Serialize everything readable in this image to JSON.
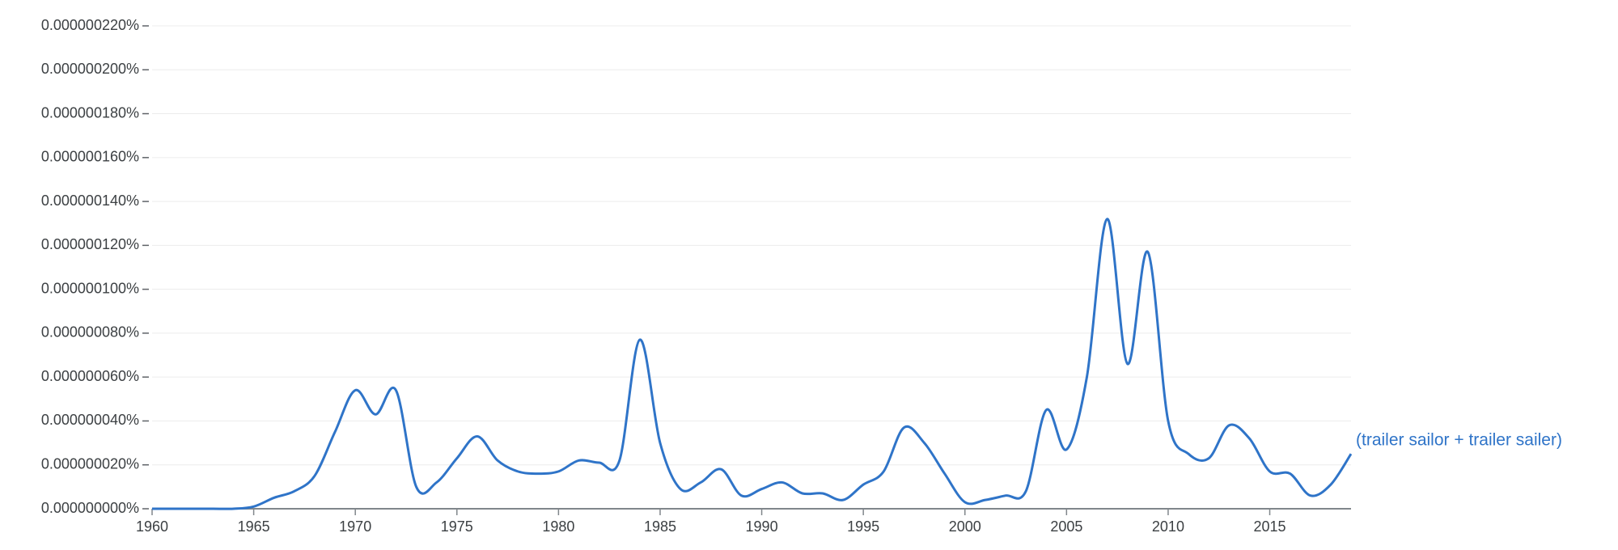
{
  "chart_data": {
    "type": "line",
    "x": [
      1960,
      1961,
      1962,
      1963,
      1964,
      1965,
      1966,
      1967,
      1968,
      1969,
      1970,
      1971,
      1972,
      1973,
      1974,
      1975,
      1976,
      1977,
      1978,
      1979,
      1980,
      1981,
      1982,
      1983,
      1984,
      1985,
      1986,
      1987,
      1988,
      1989,
      1990,
      1991,
      1992,
      1993,
      1994,
      1995,
      1996,
      1997,
      1998,
      1999,
      2000,
      2001,
      2002,
      2003,
      2004,
      2005,
      2006,
      2007,
      2008,
      2009,
      2010,
      2011,
      2012,
      2013,
      2014,
      2015,
      2016,
      2017,
      2018,
      2019
    ],
    "series": [
      {
        "name": "(trailer sailor + trailer sailer)",
        "color": "#2f74c8",
        "values": [
          0,
          0,
          0,
          0,
          0,
          1e-09,
          5e-09,
          8e-09,
          1.5e-08,
          3.5e-08,
          5.4e-08,
          4.3e-08,
          5.4e-08,
          1e-08,
          1.2e-08,
          2.3e-08,
          3.3e-08,
          2.2e-08,
          1.7e-08,
          1.6e-08,
          1.7e-08,
          2.2e-08,
          2.1e-08,
          2.2e-08,
          7.7e-08,
          3e-08,
          9e-09,
          1.2e-08,
          1.8e-08,
          6e-09,
          9e-09,
          1.2e-08,
          7e-09,
          7e-09,
          4e-09,
          1.1e-08,
          1.7e-08,
          3.7e-08,
          3e-08,
          1.6e-08,
          3e-09,
          4e-09,
          6e-09,
          8e-09,
          4.5e-08,
          2.7e-08,
          6e-08,
          1.32e-07,
          6.6e-08,
          1.17e-07,
          4e-08,
          2.5e-08,
          2.3e-08,
          3.8e-08,
          3.2e-08,
          1.7e-08,
          1.6e-08,
          6e-09,
          1.1e-08,
          2.5e-08
        ]
      }
    ],
    "xlim": [
      1960,
      2019
    ],
    "xticks": [
      1960,
      1965,
      1970,
      1975,
      1980,
      1985,
      1990,
      1995,
      2000,
      2005,
      2010,
      2015
    ],
    "ylim": [
      0,
      2.2e-07
    ],
    "yticks": [
      {
        "value": 0,
        "label": "0.000000000%"
      },
      {
        "value": 2e-08,
        "label": "0.000000020%"
      },
      {
        "value": 4e-08,
        "label": "0.000000040%"
      },
      {
        "value": 6e-08,
        "label": "0.000000060%"
      },
      {
        "value": 8e-08,
        "label": "0.000000080%"
      },
      {
        "value": 1e-07,
        "label": "0.000000100%"
      },
      {
        "value": 1.2e-07,
        "label": "0.000000120%"
      },
      {
        "value": 1.4e-07,
        "label": "0.000000140%"
      },
      {
        "value": 1.6e-07,
        "label": "0.000000160%"
      },
      {
        "value": 1.8e-07,
        "label": "0.000000180%"
      },
      {
        "value": 2e-07,
        "label": "0.000000200%"
      },
      {
        "value": 2.2e-07,
        "label": "0.000000220%"
      }
    ],
    "grid": true
  }
}
